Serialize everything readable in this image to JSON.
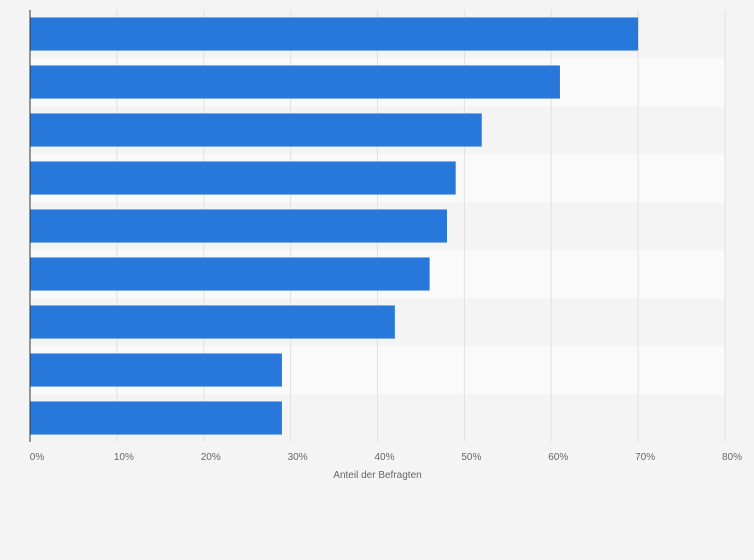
{
  "chart_data": {
    "type": "bar",
    "orientation": "horizontal",
    "categories": [
      "",
      "",
      "",
      "",
      "",
      "",
      "",
      "",
      ""
    ],
    "values": [
      70,
      61,
      52,
      49,
      48,
      46,
      42,
      29,
      29
    ],
    "xlabel": "Anteil der Befragten",
    "ylabel": "",
    "xlim": [
      0,
      80
    ],
    "xticks": [
      "0%",
      "10%",
      "20%",
      "30%",
      "40%",
      "50%",
      "60%",
      "70%",
      "80%"
    ],
    "grid": true,
    "legend": "none",
    "colors": {
      "bar": "#2878dc",
      "band_dark": "#f4f4f4",
      "band_light": "#fafafa",
      "grid": "#e1e1e1",
      "axis": "#333333"
    }
  }
}
